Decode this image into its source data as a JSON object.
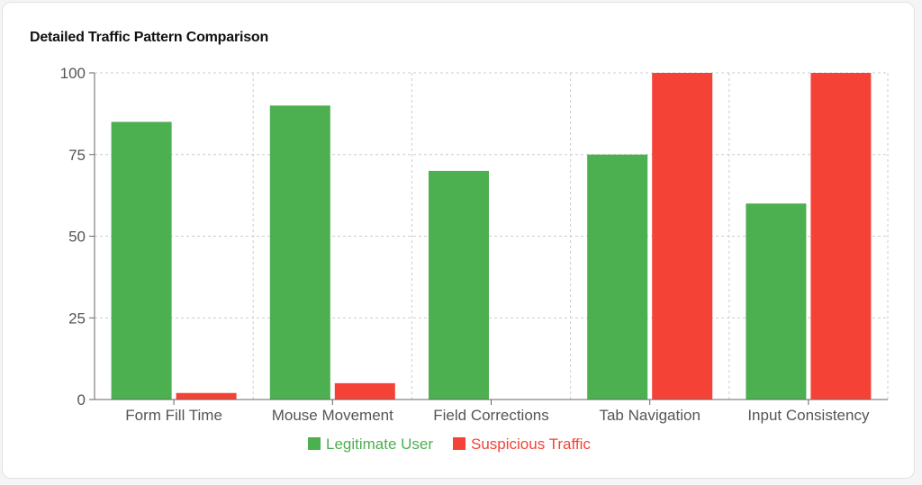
{
  "title": "Detailed Traffic Pattern Comparison",
  "chart_data": {
    "type": "bar",
    "categories": [
      "Form Fill Time",
      "Mouse Movement",
      "Field Corrections",
      "Tab Navigation",
      "Input Consistency"
    ],
    "series": [
      {
        "name": "Legitimate User",
        "color": "#4caf50",
        "values": [
          85,
          90,
          70,
          75,
          60
        ]
      },
      {
        "name": "Suspicious Traffic",
        "color": "#f44336",
        "values": [
          2,
          5,
          0,
          100,
          100
        ]
      }
    ],
    "ylim": [
      0,
      100
    ],
    "yticks": [
      0,
      25,
      50,
      75,
      100
    ],
    "grid": true,
    "legend_position": "bottom"
  }
}
